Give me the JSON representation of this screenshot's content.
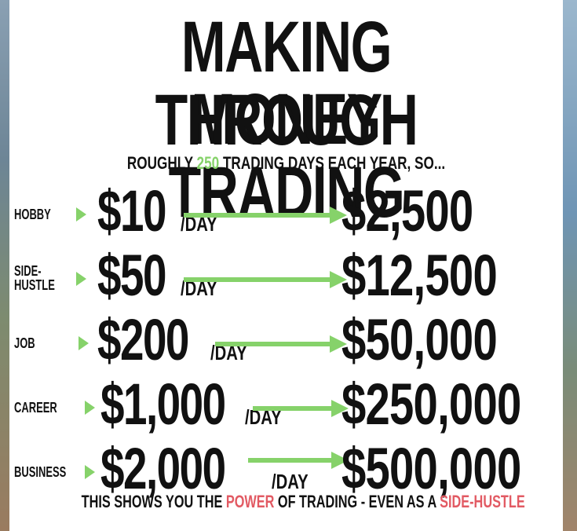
{
  "title_line1": "MAKING MONEY",
  "title_line2": "THROUGH TRADING",
  "subtitle": {
    "prefix": "ROUGHLY ",
    "highlight": "250",
    "suffix": " TRADING DAYS EACH YEAR, SO..."
  },
  "rows": [
    {
      "label_lines": [
        "HOBBY"
      ],
      "amount": "$10",
      "per": "/DAY",
      "result": "$2,500"
    },
    {
      "label_lines": [
        "SIDE-",
        "HUSTLE"
      ],
      "amount": "$50",
      "per": "/DAY",
      "result": "$12,500"
    },
    {
      "label_lines": [
        "JOB"
      ],
      "amount": "$200",
      "per": "/DAY",
      "result": "$50,000"
    },
    {
      "label_lines": [
        "CAREER"
      ],
      "amount": "$1,000",
      "per": "/DAY",
      "result": "$250,000"
    },
    {
      "label_lines": [
        "BUSINESS"
      ],
      "amount": "$2,000",
      "per": "/DAY",
      "result": "$500,000"
    }
  ],
  "footer": {
    "part1": "THIS SHOWS YOU THE ",
    "power": "POWER",
    "part2": " OF TRADING - EVEN AS A ",
    "side_hustle": "SIDE-HUSTLE"
  },
  "colors": {
    "accent_green": "#86d26a",
    "accent_red": "#e25a63",
    "text": "#111111"
  }
}
